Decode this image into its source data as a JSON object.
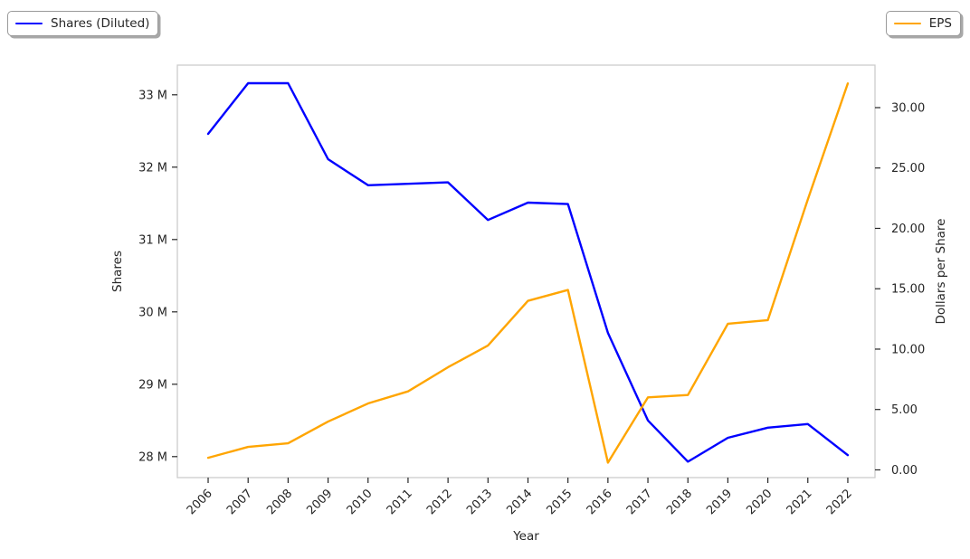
{
  "style": {
    "background": "#ffffff",
    "spine_color": "#cccccc",
    "tick_color": "#262626",
    "text_color": "#262626"
  },
  "legends": [
    {
      "label": "Shares (Diluted)",
      "color": "#0000ff"
    },
    {
      "label": "EPS",
      "color": "#ffa500"
    }
  ],
  "chart_data": {
    "type": "line",
    "title": "",
    "xlabel": "Year",
    "ylabel_left": "Shares",
    "ylabel_right": "Dollars per Share",
    "grid": false,
    "legend_position": "figure-top-corners",
    "x": [
      2006,
      2007,
      2008,
      2009,
      2010,
      2011,
      2012,
      2013,
      2014,
      2015,
      2016,
      2017,
      2018,
      2019,
      2020,
      2021,
      2022
    ],
    "series": [
      {
        "id": "shares_diluted",
        "name": "Shares (Diluted)",
        "axis": "left",
        "color": "#0000ff",
        "unit": "millions of shares",
        "values": [
          32.46,
          33.16,
          33.16,
          32.11,
          31.75,
          31.77,
          31.79,
          31.27,
          31.51,
          31.49,
          29.71,
          28.5,
          27.93,
          28.26,
          28.4,
          28.45,
          28.02
        ]
      },
      {
        "id": "eps",
        "name": "EPS",
        "axis": "right",
        "color": "#ffa500",
        "unit": "dollars per share",
        "values": [
          1.0,
          1.9,
          2.2,
          4.0,
          5.5,
          6.5,
          8.5,
          10.3,
          14.0,
          14.9,
          0.6,
          6.0,
          6.2,
          12.1,
          12.4,
          22.4,
          32.0
        ]
      }
    ],
    "x_axis": {
      "range": [
        2005.23,
        2022.68
      ],
      "label_rotation": 45,
      "ticks": [
        {
          "value": 2006,
          "label": "2006"
        },
        {
          "value": 2007,
          "label": "2007"
        },
        {
          "value": 2008,
          "label": "2008"
        },
        {
          "value": 2009,
          "label": "2009"
        },
        {
          "value": 2010,
          "label": "2010"
        },
        {
          "value": 2011,
          "label": "2011"
        },
        {
          "value": 2012,
          "label": "2012"
        },
        {
          "value": 2013,
          "label": "2013"
        },
        {
          "value": 2014,
          "label": "2014"
        },
        {
          "value": 2015,
          "label": "2015"
        },
        {
          "value": 2016,
          "label": "2016"
        },
        {
          "value": 2017,
          "label": "2017"
        },
        {
          "value": 2018,
          "label": "2018"
        },
        {
          "value": 2019,
          "label": "2019"
        },
        {
          "value": 2020,
          "label": "2020"
        },
        {
          "value": 2021,
          "label": "2021"
        },
        {
          "value": 2022,
          "label": "2022"
        }
      ]
    },
    "left_axis": {
      "range": [
        27.71,
        33.41
      ],
      "ticks": [
        {
          "value": 28,
          "label": "28 M"
        },
        {
          "value": 29,
          "label": "29 M"
        },
        {
          "value": 30,
          "label": "30 M"
        },
        {
          "value": 31,
          "label": "31 M"
        },
        {
          "value": 32,
          "label": "32 M"
        },
        {
          "value": 33,
          "label": "33 M"
        }
      ]
    },
    "right_axis": {
      "range": [
        -0.64,
        33.52
      ],
      "ticks": [
        {
          "value": 0,
          "label": "0.00"
        },
        {
          "value": 5,
          "label": "5.00"
        },
        {
          "value": 10,
          "label": "10.00"
        },
        {
          "value": 15,
          "label": "15.00"
        },
        {
          "value": 20,
          "label": "20.00"
        },
        {
          "value": 25,
          "label": "25.00"
        },
        {
          "value": 30,
          "label": "30.00"
        }
      ]
    }
  }
}
